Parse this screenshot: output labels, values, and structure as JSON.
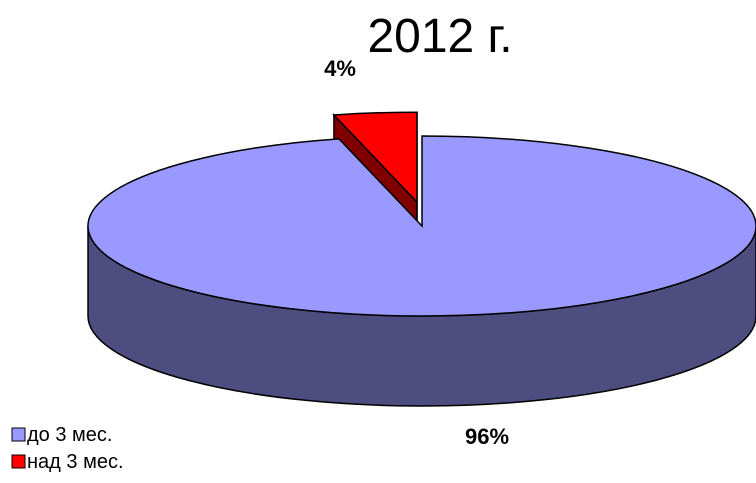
{
  "chart_data": {
    "type": "pie",
    "style": "3d-exploded",
    "title": "2012 г.",
    "slices": [
      {
        "label": "до 3 мес.",
        "value": 96,
        "display": "96%",
        "color": "#9999FF",
        "side_color": "#4D4D80",
        "exploded": false
      },
      {
        "label": "над 3 мес.",
        "value": 4,
        "display": "4%",
        "color": "#FF0000",
        "side_color": "#800000",
        "exploded": true
      }
    ],
    "legend": {
      "position": "bottom-left"
    }
  }
}
